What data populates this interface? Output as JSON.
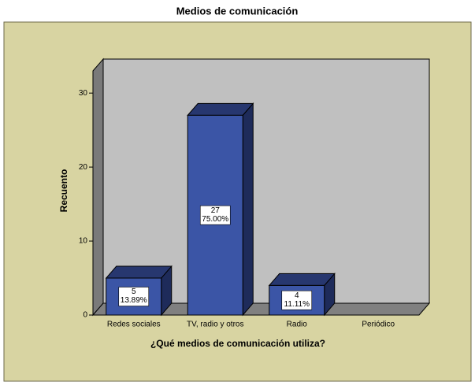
{
  "chart_data": {
    "type": "bar3d",
    "title": "Medios de comunicación",
    "x_label": "¿Qué medios de comunicación utiliza?",
    "y_label": "Recuento",
    "categories": [
      "Redes sociales",
      "TV, radio y otros",
      "Radio",
      "Periódico"
    ],
    "values": [
      5,
      27,
      4,
      0
    ],
    "percentages": [
      13.89,
      75.0,
      11.11,
      0
    ],
    "percentage_labels": [
      "13.89%",
      "75.00%",
      "11.11%",
      null
    ],
    "color": "#3b55a6",
    "ylim": [
      0,
      33
    ],
    "yticks": [
      0,
      10,
      20,
      30
    ]
  }
}
